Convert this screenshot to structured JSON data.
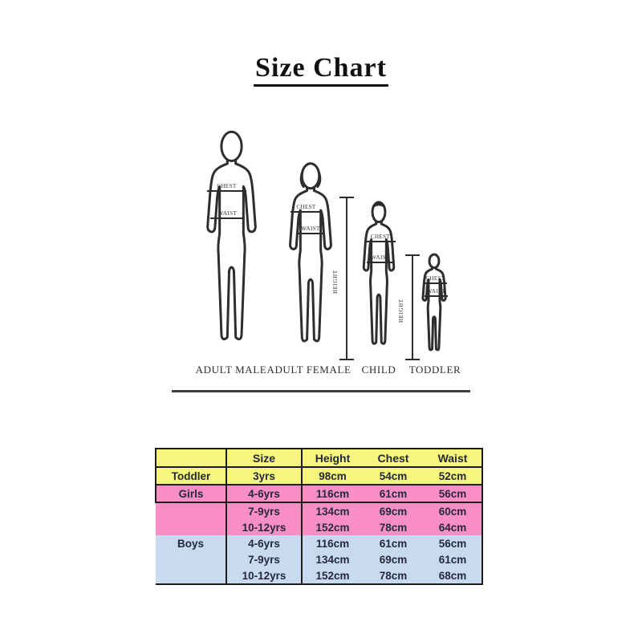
{
  "title": "Size Chart",
  "figures": {
    "height_label": "HEIGHT",
    "measure_labels": {
      "chest": "CHEST",
      "waist": "WAIST"
    },
    "items": [
      {
        "label": "ADULT MALE"
      },
      {
        "label": "ADULT FEMALE"
      },
      {
        "label": "CHILD"
      },
      {
        "label": "TODDLER"
      }
    ]
  },
  "table": {
    "headers": [
      "",
      "Size",
      "Height",
      "Chest",
      "Waist"
    ],
    "colors": {
      "yellow": "#f7f67c",
      "pink": "#f98fc4",
      "blue": "#c7daee"
    },
    "rows": [
      {
        "group": "Toddler",
        "size": "3yrs",
        "height": "98cm",
        "chest": "54cm",
        "waist": "52cm",
        "color": "yellow"
      },
      {
        "group": "Girls",
        "size": "4-6yrs",
        "height": "116cm",
        "chest": "61cm",
        "waist": "56cm",
        "color": "pink"
      },
      {
        "group": "",
        "size": "7-9yrs",
        "height": "134cm",
        "chest": "69cm",
        "waist": "60cm",
        "color": "pink"
      },
      {
        "group": "",
        "size": "10-12yrs",
        "height": "152cm",
        "chest": "78cm",
        "waist": "64cm",
        "color": "pink"
      },
      {
        "group": "Boys",
        "size": "4-6yrs",
        "height": "116cm",
        "chest": "61cm",
        "waist": "56cm",
        "color": "blue"
      },
      {
        "group": "",
        "size": "7-9yrs",
        "height": "134cm",
        "chest": "69cm",
        "waist": "61cm",
        "color": "blue"
      },
      {
        "group": "",
        "size": "10-12yrs",
        "height": "152cm",
        "chest": "78cm",
        "waist": "68cm",
        "color": "blue"
      }
    ]
  }
}
